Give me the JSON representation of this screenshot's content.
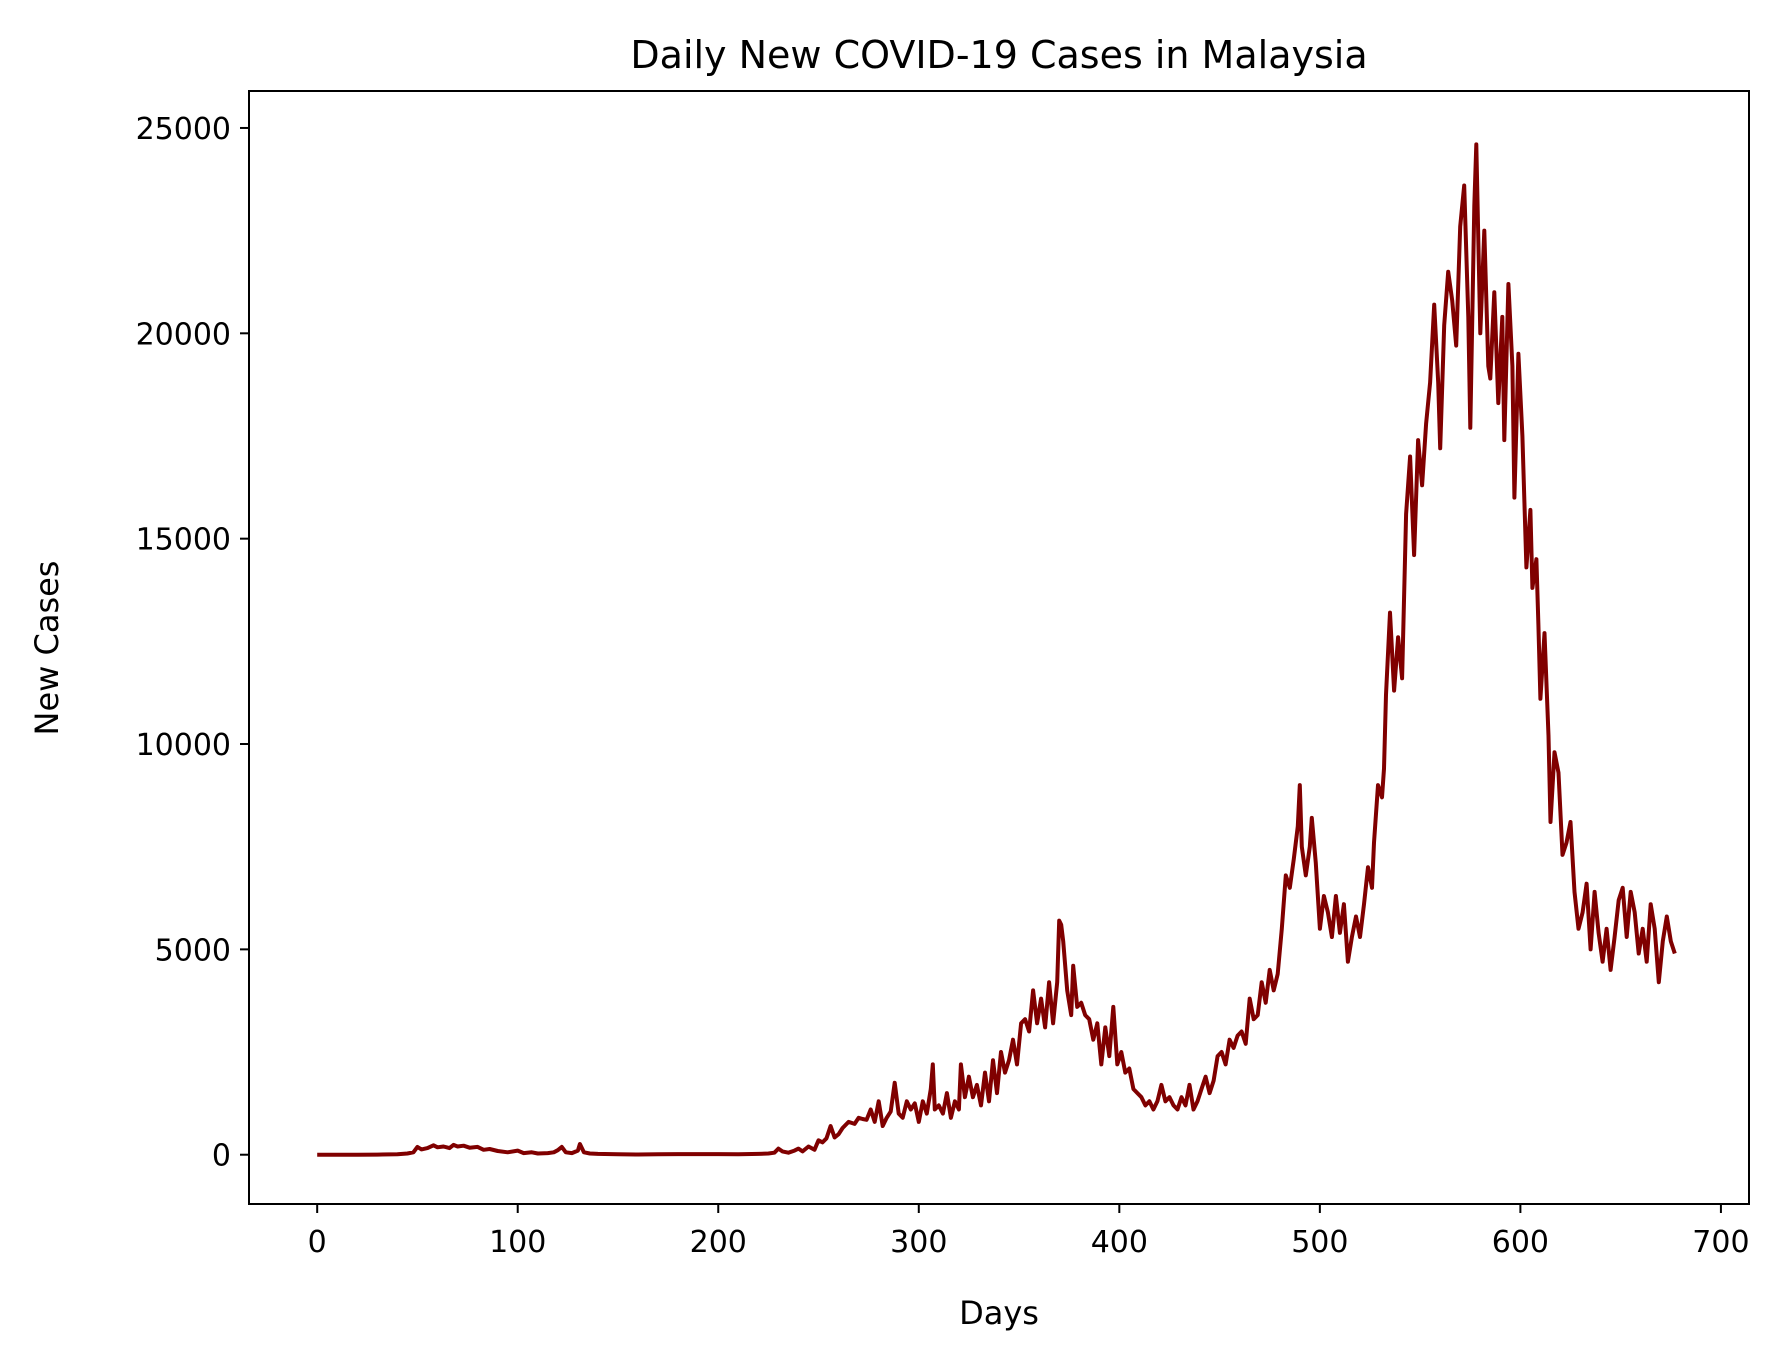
{
  "chart_data": {
    "type": "line",
    "title": "Daily New COVID-19 Cases in Malaysia",
    "xlabel": "Days",
    "ylabel": "New Cases",
    "xlim": [
      -34,
      714
    ],
    "ylim": [
      -1200,
      25900
    ],
    "xticks": [
      0,
      100,
      200,
      300,
      400,
      500,
      600,
      700
    ],
    "yticks": [
      0,
      5000,
      10000,
      15000,
      20000,
      25000
    ],
    "grid": false,
    "series": [
      {
        "color": "#800000",
        "points": [
          [
            0,
            0
          ],
          [
            10,
            0
          ],
          [
            20,
            0
          ],
          [
            30,
            2
          ],
          [
            40,
            10
          ],
          [
            45,
            30
          ],
          [
            48,
            60
          ],
          [
            50,
            190
          ],
          [
            52,
            130
          ],
          [
            55,
            160
          ],
          [
            58,
            230
          ],
          [
            60,
            180
          ],
          [
            63,
            200
          ],
          [
            66,
            160
          ],
          [
            68,
            240
          ],
          [
            70,
            200
          ],
          [
            73,
            220
          ],
          [
            76,
            170
          ],
          [
            80,
            190
          ],
          [
            83,
            120
          ],
          [
            86,
            140
          ],
          [
            90,
            90
          ],
          [
            95,
            60
          ],
          [
            100,
            100
          ],
          [
            103,
            40
          ],
          [
            107,
            60
          ],
          [
            110,
            30
          ],
          [
            115,
            40
          ],
          [
            118,
            60
          ],
          [
            120,
            110
          ],
          [
            122,
            190
          ],
          [
            124,
            60
          ],
          [
            127,
            40
          ],
          [
            130,
            100
          ],
          [
            131,
            260
          ],
          [
            133,
            60
          ],
          [
            136,
            30
          ],
          [
            140,
            20
          ],
          [
            150,
            10
          ],
          [
            160,
            5
          ],
          [
            170,
            10
          ],
          [
            180,
            15
          ],
          [
            190,
            15
          ],
          [
            200,
            15
          ],
          [
            210,
            10
          ],
          [
            220,
            20
          ],
          [
            225,
            30
          ],
          [
            228,
            50
          ],
          [
            230,
            150
          ],
          [
            232,
            80
          ],
          [
            235,
            50
          ],
          [
            238,
            100
          ],
          [
            240,
            150
          ],
          [
            242,
            80
          ],
          [
            245,
            200
          ],
          [
            248,
            120
          ],
          [
            250,
            350
          ],
          [
            252,
            300
          ],
          [
            254,
            400
          ],
          [
            256,
            700
          ],
          [
            258,
            420
          ],
          [
            260,
            500
          ],
          [
            262,
            650
          ],
          [
            265,
            800
          ],
          [
            268,
            750
          ],
          [
            270,
            900
          ],
          [
            272,
            870
          ],
          [
            274,
            850
          ],
          [
            276,
            1100
          ],
          [
            278,
            800
          ],
          [
            280,
            1300
          ],
          [
            282,
            700
          ],
          [
            284,
            900
          ],
          [
            286,
            1050
          ],
          [
            288,
            1750
          ],
          [
            290,
            1000
          ],
          [
            292,
            900
          ],
          [
            294,
            1300
          ],
          [
            296,
            1100
          ],
          [
            298,
            1250
          ],
          [
            300,
            800
          ],
          [
            302,
            1300
          ],
          [
            304,
            1000
          ],
          [
            306,
            1600
          ],
          [
            307,
            2200
          ],
          [
            308,
            1100
          ],
          [
            310,
            1200
          ],
          [
            312,
            1000
          ],
          [
            314,
            1500
          ],
          [
            316,
            900
          ],
          [
            318,
            1300
          ],
          [
            320,
            1100
          ],
          [
            321,
            2200
          ],
          [
            323,
            1400
          ],
          [
            325,
            1900
          ],
          [
            327,
            1400
          ],
          [
            329,
            1700
          ],
          [
            331,
            1200
          ],
          [
            333,
            2000
          ],
          [
            335,
            1300
          ],
          [
            337,
            2300
          ],
          [
            339,
            1500
          ],
          [
            341,
            2500
          ],
          [
            343,
            2000
          ],
          [
            345,
            2300
          ],
          [
            347,
            2800
          ],
          [
            349,
            2200
          ],
          [
            351,
            3200
          ],
          [
            353,
            3300
          ],
          [
            355,
            3000
          ],
          [
            357,
            4000
          ],
          [
            359,
            3200
          ],
          [
            361,
            3800
          ],
          [
            363,
            3100
          ],
          [
            365,
            4200
          ],
          [
            367,
            3200
          ],
          [
            369,
            4200
          ],
          [
            370,
            5700
          ],
          [
            371,
            5600
          ],
          [
            372,
            5200
          ],
          [
            374,
            4000
          ],
          [
            376,
            3400
          ],
          [
            377,
            4600
          ],
          [
            379,
            3600
          ],
          [
            381,
            3700
          ],
          [
            383,
            3400
          ],
          [
            385,
            3300
          ],
          [
            387,
            2800
          ],
          [
            389,
            3200
          ],
          [
            391,
            2200
          ],
          [
            393,
            3100
          ],
          [
            395,
            2400
          ],
          [
            397,
            3600
          ],
          [
            399,
            2200
          ],
          [
            401,
            2500
          ],
          [
            403,
            2000
          ],
          [
            405,
            2100
          ],
          [
            407,
            1600
          ],
          [
            409,
            1500
          ],
          [
            411,
            1400
          ],
          [
            413,
            1200
          ],
          [
            415,
            1300
          ],
          [
            417,
            1100
          ],
          [
            419,
            1300
          ],
          [
            421,
            1700
          ],
          [
            423,
            1300
          ],
          [
            425,
            1400
          ],
          [
            427,
            1200
          ],
          [
            429,
            1100
          ],
          [
            431,
            1400
          ],
          [
            433,
            1200
          ],
          [
            435,
            1700
          ],
          [
            437,
            1100
          ],
          [
            439,
            1300
          ],
          [
            441,
            1600
          ],
          [
            443,
            1900
          ],
          [
            445,
            1500
          ],
          [
            447,
            1800
          ],
          [
            449,
            2400
          ],
          [
            451,
            2500
          ],
          [
            453,
            2200
          ],
          [
            455,
            2800
          ],
          [
            457,
            2600
          ],
          [
            459,
            2900
          ],
          [
            461,
            3000
          ],
          [
            463,
            2700
          ],
          [
            465,
            3800
          ],
          [
            467,
            3300
          ],
          [
            469,
            3400
          ],
          [
            471,
            4200
          ],
          [
            473,
            3700
          ],
          [
            475,
            4500
          ],
          [
            477,
            4000
          ],
          [
            479,
            4400
          ],
          [
            481,
            5500
          ],
          [
            483,
            6800
          ],
          [
            485,
            6500
          ],
          [
            487,
            7200
          ],
          [
            489,
            8000
          ],
          [
            490,
            9000
          ],
          [
            491,
            7500
          ],
          [
            493,
            6800
          ],
          [
            495,
            7500
          ],
          [
            496,
            8200
          ],
          [
            498,
            7100
          ],
          [
            500,
            5500
          ],
          [
            502,
            6300
          ],
          [
            504,
            5900
          ],
          [
            506,
            5300
          ],
          [
            508,
            6300
          ],
          [
            510,
            5400
          ],
          [
            512,
            6100
          ],
          [
            514,
            4700
          ],
          [
            516,
            5300
          ],
          [
            518,
            5800
          ],
          [
            520,
            5300
          ],
          [
            522,
            6100
          ],
          [
            524,
            7000
          ],
          [
            526,
            6500
          ],
          [
            527,
            7600
          ],
          [
            529,
            9000
          ],
          [
            531,
            8700
          ],
          [
            532,
            9400
          ],
          [
            533,
            11200
          ],
          [
            535,
            13200
          ],
          [
            537,
            11300
          ],
          [
            539,
            12600
          ],
          [
            541,
            11600
          ],
          [
            543,
            15600
          ],
          [
            545,
            17000
          ],
          [
            547,
            14600
          ],
          [
            549,
            17400
          ],
          [
            551,
            16300
          ],
          [
            553,
            17800
          ],
          [
            555,
            18800
          ],
          [
            557,
            20700
          ],
          [
            559,
            18800
          ],
          [
            560,
            17200
          ],
          [
            562,
            20200
          ],
          [
            564,
            21500
          ],
          [
            566,
            20800
          ],
          [
            568,
            19700
          ],
          [
            570,
            22600
          ],
          [
            572,
            23600
          ],
          [
            574,
            20400
          ],
          [
            575,
            17700
          ],
          [
            577,
            23100
          ],
          [
            578,
            24600
          ],
          [
            580,
            20000
          ],
          [
            582,
            22500
          ],
          [
            584,
            19200
          ],
          [
            585,
            18900
          ],
          [
            587,
            21000
          ],
          [
            589,
            18300
          ],
          [
            591,
            20400
          ],
          [
            592,
            17400
          ],
          [
            594,
            21200
          ],
          [
            596,
            19200
          ],
          [
            597,
            16000
          ],
          [
            599,
            19500
          ],
          [
            601,
            17500
          ],
          [
            603,
            14300
          ],
          [
            605,
            15700
          ],
          [
            606,
            13800
          ],
          [
            608,
            14500
          ],
          [
            609,
            12900
          ],
          [
            610,
            11100
          ],
          [
            612,
            12700
          ],
          [
            614,
            10200
          ],
          [
            615,
            8100
          ],
          [
            617,
            9800
          ],
          [
            619,
            9300
          ],
          [
            621,
            7300
          ],
          [
            623,
            7600
          ],
          [
            625,
            8100
          ],
          [
            627,
            6400
          ],
          [
            629,
            5500
          ],
          [
            631,
            5900
          ],
          [
            633,
            6600
          ],
          [
            635,
            5000
          ],
          [
            637,
            6400
          ],
          [
            639,
            5400
          ],
          [
            641,
            4700
          ],
          [
            643,
            5500
          ],
          [
            645,
            4500
          ],
          [
            647,
            5300
          ],
          [
            649,
            6200
          ],
          [
            651,
            6500
          ],
          [
            653,
            5300
          ],
          [
            655,
            6400
          ],
          [
            657,
            5900
          ],
          [
            659,
            4900
          ],
          [
            661,
            5500
          ],
          [
            663,
            4700
          ],
          [
            665,
            6100
          ],
          [
            667,
            5500
          ],
          [
            669,
            4200
          ],
          [
            671,
            5200
          ],
          [
            673,
            5800
          ],
          [
            675,
            5200
          ],
          [
            677,
            4900
          ]
        ]
      }
    ]
  }
}
